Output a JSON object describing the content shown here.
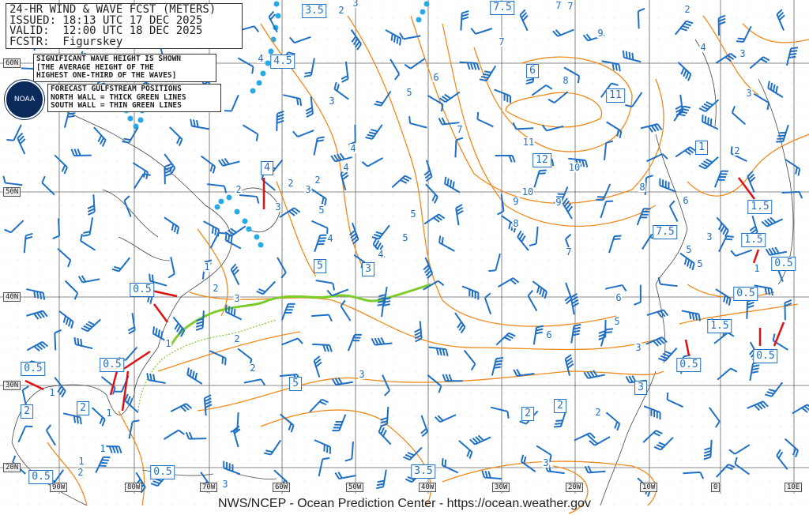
{
  "header": {
    "line1": "24-HR WIND & WAVE FCST (METERS)",
    "line2": "ISSUED: 18:13 UTC 17 DEC 2025",
    "line3": "VALID:  12:00 UTC 18 DEC 2025",
    "line4": "FCSTR:  Figurskey"
  },
  "note": {
    "line1": "SIGNIFICANT WAVE HEIGHT IS SHOWN",
    "line2": "[THE AVERAGE HEIGHT OF THE",
    "line3": "HIGHEST ONE-THIRD OF THE WAVES]"
  },
  "gulfstream_note": {
    "line1": "FORECAST GULFSTREAM POSITIONS",
    "line2": "NORTH WALL = THICK GREEN LINES",
    "line3": "SOUTH WALL = THIN GREEN LINES"
  },
  "logo": "NOAA",
  "latitudes": [
    "60N",
    "50N",
    "40N",
    "30N",
    "20N"
  ],
  "longitudes": [
    "90W",
    "80W",
    "70W",
    "60W",
    "50W",
    "40W",
    "30W",
    "20W",
    "10W",
    "0",
    "10E"
  ],
  "boxed_wave_heights": [
    "3.5",
    "4.5",
    "7.5",
    "6",
    "11",
    "12",
    "4",
    "5",
    "3",
    "7.5",
    "1",
    "1.5",
    "1.5",
    "0.5",
    "0.5",
    "1.5",
    "0.5",
    "0.5",
    "3",
    "5",
    "2",
    "2",
    "3.5",
    "0.5",
    "0.5",
    "2",
    "2",
    "0.5",
    "0.5",
    "0.5"
  ],
  "contour_labels": [
    "2",
    "4",
    "3",
    "3",
    "2",
    "2",
    "4",
    "3",
    "5",
    "6",
    "7",
    "7",
    "8",
    "9",
    "7",
    "9",
    "10",
    "11",
    "9",
    "8",
    "10",
    "8",
    "6",
    "5",
    "4",
    "7",
    "6",
    "5",
    "4",
    "3",
    "2",
    "1",
    "2",
    "3",
    "3",
    "2",
    "1",
    "2",
    "1",
    "1",
    "1",
    "1",
    "2",
    "3",
    "4",
    "5",
    "6",
    "3",
    "2",
    "2",
    "3",
    "2",
    "1",
    "5",
    "5",
    "4",
    "3",
    "7",
    "5",
    "3",
    "3"
  ],
  "colors": {
    "contour": "#f08a1c",
    "wind": "#1f6fc5",
    "ice": "#27a9e8",
    "gulfstream": "#7ccc2a",
    "arrow": "#e01010",
    "grid": "#666666"
  },
  "footer": "NWS/NCEP - Ocean Prediction Center - https://ocean.weather.gov"
}
